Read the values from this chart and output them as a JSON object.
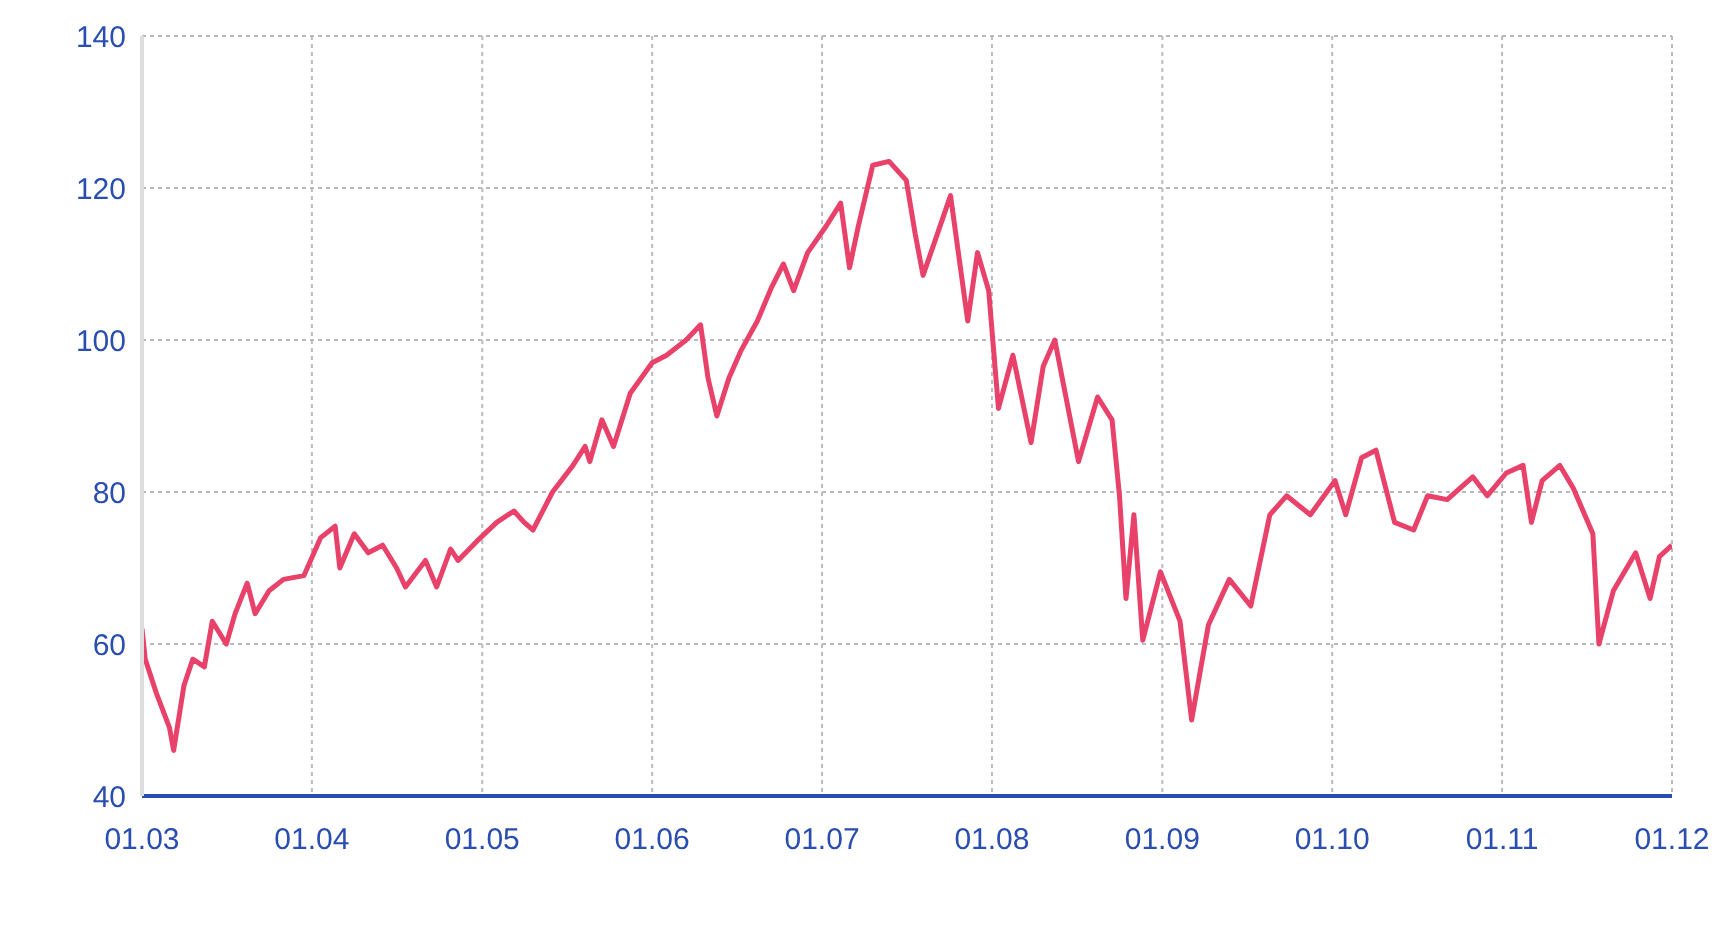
{
  "chart_data": {
    "type": "line",
    "x": [
      "2003-01-01",
      "2003-01-08",
      "2003-02-01",
      "2003-03-01",
      "2003-03-10",
      "2003-04-01",
      "2003-04-20",
      "2003-05-15",
      "2003-06-01",
      "2003-07-01",
      "2003-07-20",
      "2003-08-15",
      "2003-09-01",
      "2003-10-01",
      "2003-11-01",
      "2003-12-15",
      "2004-01-20",
      "2004-02-20",
      "2004-03-01",
      "2004-04-01",
      "2004-05-01",
      "2004-06-01",
      "2004-07-01",
      "2004-07-20",
      "2004-09-01",
      "2004-09-25",
      "2004-10-25",
      "2004-11-10",
      "2004-12-20",
      "2005-02-01",
      "2005-03-10",
      "2005-04-01",
      "2005-04-20",
      "2005-06-01",
      "2005-07-15",
      "2005-08-10",
      "2005-08-20",
      "2005-09-15",
      "2005-10-10",
      "2005-11-15",
      "2006-01-01",
      "2006-02-01",
      "2006-03-15",
      "2006-04-15",
      "2006-05-01",
      "2006-05-20",
      "2006-06-15",
      "2006-07-10",
      "2006-08-15",
      "2006-09-15",
      "2006-10-10",
      "2006-11-01",
      "2006-12-01",
      "2007-01-10",
      "2007-02-10",
      "2007-03-01",
      "2007-03-20",
      "2007-04-20",
      "2007-05-25",
      "2007-07-01",
      "2007-07-20",
      "2007-08-06",
      "2007-09-06",
      "2007-10-04",
      "2007-11-10",
      "2007-12-01",
      "2007-12-25",
      "2008-01-15",
      "2008-02-15",
      "2008-03-25",
      "2008-04-20",
      "2008-05-15",
      "2008-07-05",
      "2008-08-15",
      "2008-09-15",
      "2008-10-01",
      "2008-10-15",
      "2008-11-01",
      "2008-11-20",
      "2008-12-28",
      "2009-02-08",
      "2009-03-05",
      "2009-04-10",
      "2009-05-25",
      "2009-07-10",
      "2009-08-20",
      "2009-09-25",
      "2009-11-15",
      "2010-01-07",
      "2010-01-30",
      "2010-03-05",
      "2010-04-05",
      "2010-05-15",
      "2010-06-25",
      "2010-07-25",
      "2010-09-05",
      "2010-10-30",
      "2010-11-30",
      "2011-01-10",
      "2011-02-15",
      "2011-03-05",
      "2011-03-28",
      "2011-05-05",
      "2011-06-03",
      "2011-07-15",
      "2011-07-28",
      "2011-08-28",
      "2011-10-15",
      "2011-11-15",
      "2011-12-05",
      "2012-01-01"
    ],
    "series": [
      {
        "color": "#e8416a",
        "values": [
          62,
          58,
          53.5,
          49,
          46,
          54.5,
          58,
          57,
          63,
          60,
          64,
          68,
          64,
          67,
          68.5,
          69,
          74,
          75.5,
          70,
          74.5,
          72,
          73,
          70,
          67.5,
          71,
          67.5,
          72.5,
          71,
          73.5,
          76,
          77.5,
          76,
          75,
          80,
          83.5,
          86,
          84,
          89.5,
          86,
          93,
          97,
          98,
          100,
          102,
          95,
          90,
          95,
          98.5,
          102.5,
          107,
          110,
          106.5,
          111.5,
          115,
          118,
          109.5,
          115,
          123,
          123.5,
          121,
          114,
          108.5,
          114,
          119,
          102.5,
          111.5,
          106.5,
          91,
          98,
          86.5,
          96.5,
          100,
          84,
          92.5,
          89.5,
          79.5,
          66,
          77,
          60.5,
          69.5,
          63,
          50,
          62.5,
          68.5,
          65,
          77,
          79.5,
          77,
          81.5,
          77,
          84.5,
          85.5,
          76,
          75,
          79.5,
          79,
          82,
          79.5,
          82.5,
          83.5,
          76,
          81.5,
          83.5,
          80.5,
          74.5,
          60,
          67,
          72,
          66,
          71.5,
          73
        ]
      }
    ],
    "xlim": [
      "2003-01-01",
      "2012-01-01"
    ],
    "xticks": [
      {
        "value": "2003-01-01",
        "label": "01.03"
      },
      {
        "value": "2004-01-01",
        "label": "01.04"
      },
      {
        "value": "2005-01-01",
        "label": "01.05"
      },
      {
        "value": "2006-01-01",
        "label": "01.06"
      },
      {
        "value": "2007-01-01",
        "label": "01.07"
      },
      {
        "value": "2008-01-01",
        "label": "01.08"
      },
      {
        "value": "2009-01-01",
        "label": "01.09"
      },
      {
        "value": "2010-01-01",
        "label": "01.10"
      },
      {
        "value": "2011-01-01",
        "label": "01.11"
      },
      {
        "value": "2012-01-01",
        "label": "01.12"
      }
    ],
    "ylim": [
      40,
      140
    ],
    "yticks": [
      40,
      60,
      80,
      100,
      120,
      140
    ],
    "grid": true,
    "marker": "none",
    "line_style": "solid"
  }
}
